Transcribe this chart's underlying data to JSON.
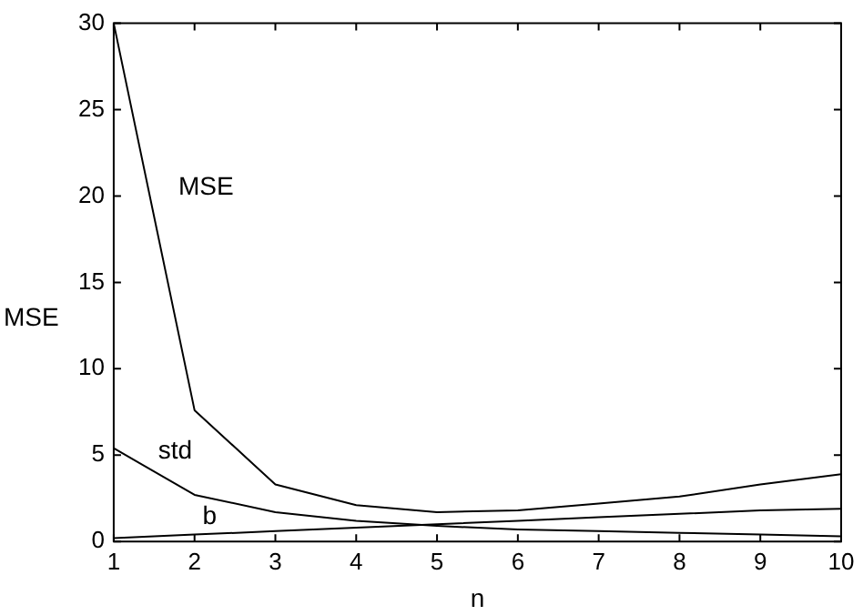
{
  "chart_data": {
    "type": "line",
    "xlabel": "n",
    "ylabel": "MSE",
    "x": [
      1,
      2,
      3,
      4,
      5,
      6,
      7,
      8,
      9,
      10
    ],
    "series": [
      {
        "name": "MSE",
        "color": "#000000",
        "values": [
          30,
          7.6,
          3.3,
          2.1,
          1.7,
          1.8,
          2.2,
          2.6,
          3.3,
          3.9
        ]
      },
      {
        "name": "std",
        "color": "#000000",
        "values": [
          5.4,
          2.7,
          1.7,
          1.2,
          0.9,
          0.7,
          0.6,
          0.5,
          0.4,
          0.3
        ]
      },
      {
        "name": "b",
        "color": "#000000",
        "values": [
          0.2,
          0.4,
          0.6,
          0.8,
          1,
          1.2,
          1.4,
          1.6,
          1.8,
          1.9
        ]
      }
    ],
    "xlim": [
      1,
      10
    ],
    "xticks": [
      1,
      2,
      3,
      4,
      5,
      6,
      7,
      8,
      9,
      10
    ],
    "ylim": [
      0,
      30
    ],
    "yticks": [
      0,
      5,
      10,
      15,
      20,
      25,
      30
    ],
    "grid": false,
    "legend": false,
    "marker": "none",
    "line_style": "solid"
  }
}
